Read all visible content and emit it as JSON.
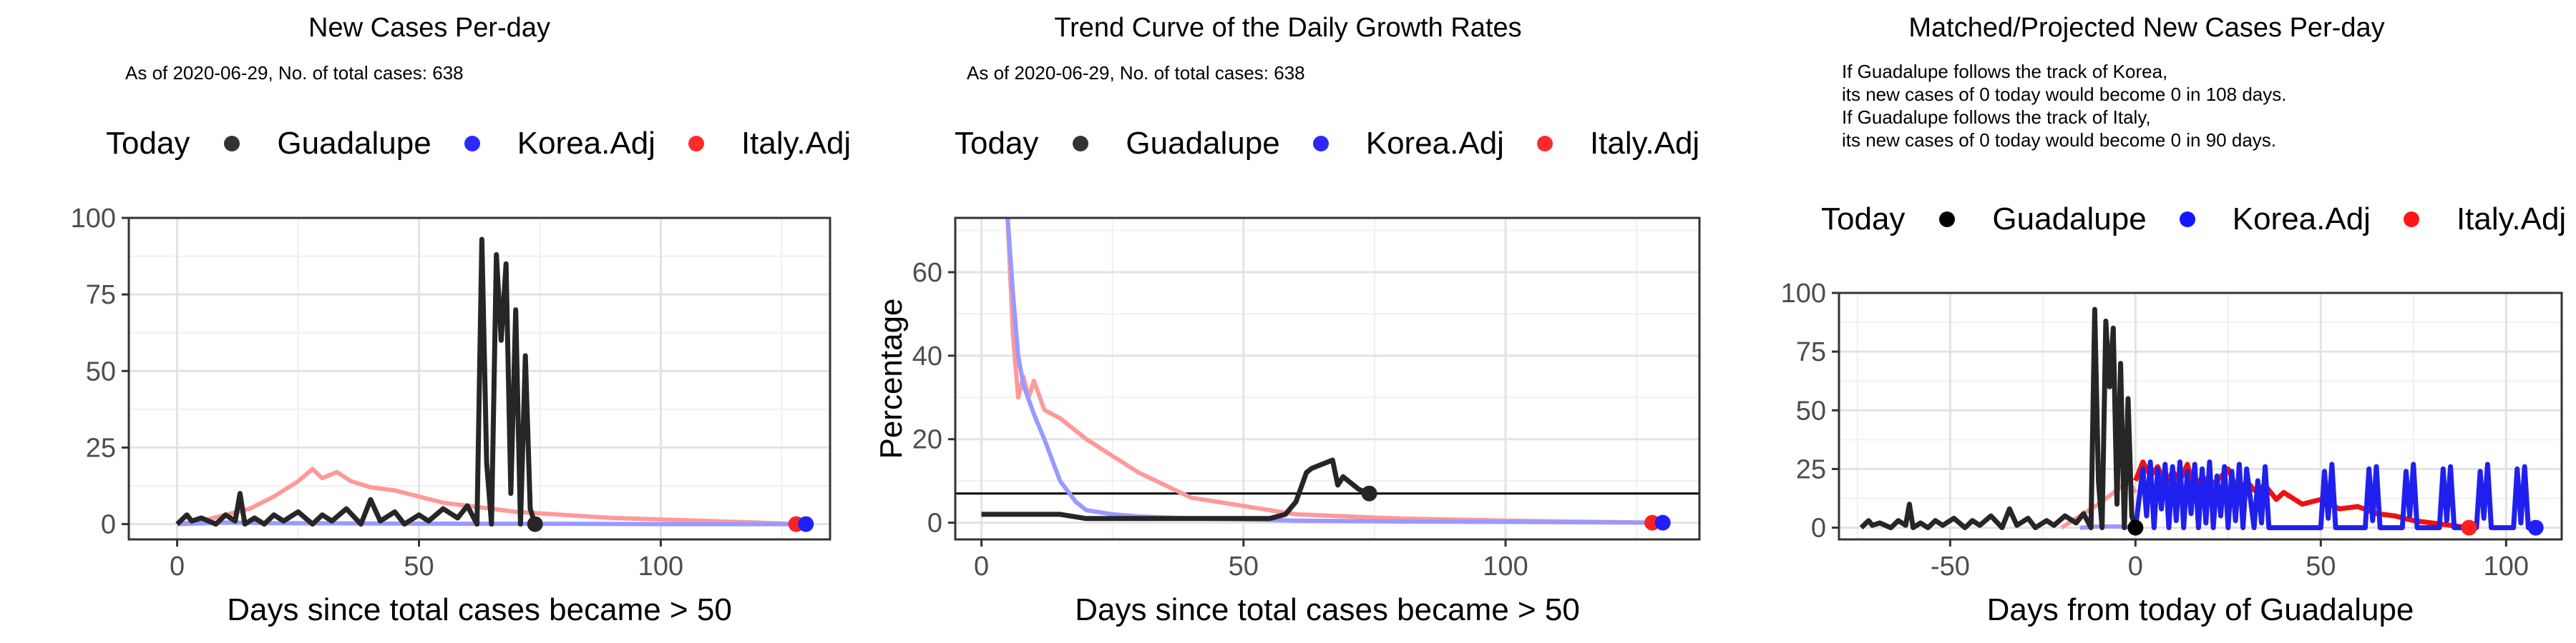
{
  "chart_data": [
    {
      "type": "line",
      "title": "New Cases Per-day",
      "subtitle": "As of 2020-06-29, No. of total cases: 638",
      "xlabel": "Days since total cases became > 50",
      "ylabel": "",
      "xlim": [
        -10,
        135
      ],
      "ylim": [
        -5,
        100
      ],
      "xticks": [
        0,
        50,
        100
      ],
      "yticks": [
        0,
        25,
        50,
        75,
        100
      ],
      "legend": {
        "title": "Today",
        "position": "top",
        "entries": [
          "Guadalupe",
          "Korea.Adj",
          "Italy.Adj"
        ]
      },
      "series": [
        {
          "name": "Italy.Adj",
          "color": "#ff9999",
          "width": 6,
          "x": [
            0,
            5,
            10,
            15,
            20,
            25,
            28,
            30,
            33,
            36,
            40,
            45,
            50,
            55,
            60,
            65,
            70,
            80,
            90,
            100,
            110,
            120,
            128
          ],
          "y": [
            0,
            1,
            3,
            5,
            9,
            14,
            18,
            15,
            17,
            14,
            12,
            11,
            9,
            7,
            6,
            5,
            4,
            3,
            2,
            1.5,
            1,
            0.5,
            0
          ]
        },
        {
          "name": "Korea.Adj",
          "color": "#9999ff",
          "width": 6,
          "x": [
            0,
            10,
            20,
            40,
            60,
            80,
            100,
            120,
            130
          ],
          "y": [
            0,
            0.5,
            0.3,
            0.2,
            0.1,
            0.1,
            0,
            0,
            0
          ]
        },
        {
          "name": "Guadalupe",
          "color": "#262626",
          "width": 7,
          "x": [
            0,
            2,
            3,
            5,
            8,
            10,
            12,
            13,
            14,
            16,
            18,
            20,
            22,
            25,
            28,
            30,
            32,
            35,
            38,
            40,
            42,
            45,
            47,
            50,
            52,
            55,
            58,
            60,
            62,
            63,
            64,
            65,
            66,
            67,
            68,
            69,
            70,
            71,
            72,
            73,
            74
          ],
          "y": [
            0,
            3,
            1,
            2,
            0,
            3,
            1,
            10,
            0,
            2,
            0,
            3,
            1,
            4,
            0,
            3,
            1,
            5,
            0,
            8,
            1,
            4,
            0,
            3,
            1,
            5,
            2,
            6,
            0,
            93,
            20,
            0,
            88,
            60,
            85,
            10,
            70,
            0,
            55,
            5,
            0
          ]
        }
      ],
      "today_points": [
        {
          "name": "Guadalupe",
          "x": 74,
          "y": 0,
          "color": "#262626"
        },
        {
          "name": "Italy.Adj",
          "x": 128,
          "y": 0,
          "color": "#ff2020"
        },
        {
          "name": "Korea.Adj",
          "x": 130,
          "y": 0,
          "color": "#2020ff"
        }
      ]
    },
    {
      "type": "line",
      "title": "Trend Curve of the Daily Growth Rates",
      "subtitle": "As of 2020-06-29, No. of total cases: 638",
      "xlabel": "Days since total cases became > 50",
      "ylabel": "Percentage",
      "xlim": [
        -5,
        137
      ],
      "ylim": [
        -4,
        73
      ],
      "xticks": [
        0,
        50,
        100
      ],
      "yticks": [
        0,
        20,
        40,
        60
      ],
      "hline": 7,
      "legend": {
        "title": "Today",
        "position": "top",
        "entries": [
          "Guadalupe",
          "Korea.Adj",
          "Italy.Adj"
        ]
      },
      "series": [
        {
          "name": "Italy.Adj",
          "color": "#ff9999",
          "width": 6,
          "x": [
            5,
            6,
            7,
            8,
            9,
            10,
            12,
            15,
            20,
            25,
            30,
            35,
            40,
            45,
            50,
            55,
            60,
            70,
            80,
            100,
            128
          ],
          "y": [
            73,
            45,
            30,
            35,
            30,
            34,
            27,
            25,
            20,
            16,
            12,
            9,
            6,
            5,
            4,
            3,
            2,
            1.5,
            1,
            0.5,
            0
          ]
        },
        {
          "name": "Korea.Adj",
          "color": "#9999ff",
          "width": 6,
          "x": [
            5,
            6,
            7,
            8,
            10,
            12,
            15,
            18,
            20,
            25,
            30,
            40,
            50,
            60,
            80,
            100,
            130
          ],
          "y": [
            73,
            55,
            40,
            33,
            26,
            20,
            10,
            5,
            3,
            2,
            1.5,
            1,
            0.8,
            0.5,
            0.3,
            0.2,
            0
          ]
        },
        {
          "name": "Guadalupe",
          "color": "#262626",
          "width": 7,
          "x": [
            0,
            5,
            10,
            15,
            20,
            25,
            30,
            35,
            40,
            45,
            50,
            55,
            58,
            60,
            62,
            63,
            65,
            67,
            68,
            69,
            70,
            72,
            74
          ],
          "y": [
            2,
            2,
            2,
            2,
            1,
            1,
            1,
            1,
            1,
            1,
            1,
            1,
            2,
            5,
            12,
            13,
            14,
            15,
            9,
            11,
            10,
            8,
            7
          ]
        }
      ],
      "today_points": [
        {
          "name": "Guadalupe",
          "x": 74,
          "y": 7,
          "color": "#262626"
        },
        {
          "name": "Italy.Adj",
          "x": 128,
          "y": 0,
          "color": "#ff2020"
        },
        {
          "name": "Korea.Adj",
          "x": 130,
          "y": 0,
          "color": "#2020ff"
        }
      ]
    },
    {
      "type": "line",
      "title": "Matched/Projected New Cases Per-day",
      "subtitle": "If Guadalupe follows the track of Korea,\nits new cases of 0 today would become 0 in 108 days.\nIf Guadalupe follows the track of Italy,\nits new cases of 0 today would become 0 in 90 days.",
      "xlabel": "Days from today of Guadalupe",
      "ylabel": "",
      "xlim": [
        -80,
        115
      ],
      "ylim": [
        -5,
        100
      ],
      "xticks": [
        -50,
        0,
        50,
        100
      ],
      "yticks": [
        0,
        25,
        50,
        75,
        100
      ],
      "legend": {
        "title": "Today",
        "position": "top",
        "entries": [
          "Guadalupe",
          "Korea.Adj",
          "Italy.Adj"
        ]
      },
      "series": [
        {
          "name": "Italy.Adj (matched)",
          "color": "#ff9999",
          "width": 6,
          "x": [
            -20,
            -15,
            -10,
            -5,
            -2,
            0
          ],
          "y": [
            0,
            5,
            10,
            16,
            20,
            15
          ]
        },
        {
          "name": "Italy.Adj (projected)",
          "color": "#ee1111",
          "width": 7,
          "x": [
            0,
            2,
            4,
            6,
            8,
            10,
            12,
            14,
            16,
            18,
            20,
            22,
            25,
            28,
            30,
            32,
            35,
            38,
            40,
            45,
            50,
            55,
            60,
            65,
            70,
            75,
            80,
            85,
            90
          ],
          "y": [
            20,
            28,
            22,
            26,
            18,
            24,
            20,
            27,
            15,
            22,
            18,
            20,
            25,
            14,
            20,
            16,
            18,
            12,
            15,
            10,
            12,
            8,
            9,
            6,
            5,
            3,
            2,
            1,
            0
          ]
        },
        {
          "name": "Korea.Adj (matched)",
          "color": "#9999ff",
          "width": 6,
          "x": [
            -15,
            -10,
            -5,
            0
          ],
          "y": [
            0,
            0.5,
            0.5,
            0
          ]
        },
        {
          "name": "Korea.Adj (projected)",
          "color": "#2020ee",
          "width": 7,
          "x": [
            0,
            2,
            3,
            4,
            5,
            6,
            7,
            8,
            9,
            10,
            11,
            12,
            13,
            14,
            15,
            16,
            17,
            18,
            19,
            20,
            21,
            22,
            23,
            24,
            25,
            26,
            27,
            28,
            29,
            30,
            32,
            33,
            34,
            35,
            36,
            38,
            40,
            42,
            44,
            46,
            48,
            50,
            51,
            52,
            53,
            54,
            56,
            58,
            60,
            62,
            63,
            64,
            65,
            66,
            68,
            70,
            72,
            73,
            74,
            75,
            76,
            78,
            80,
            82,
            83,
            84,
            85,
            86,
            88,
            90,
            92,
            93,
            94,
            95,
            96,
            98,
            100,
            102,
            103,
            104,
            105,
            106,
            108
          ],
          "y": [
            0,
            25,
            5,
            28,
            0,
            25,
            8,
            27,
            0,
            26,
            3,
            28,
            0,
            24,
            6,
            27,
            0,
            25,
            2,
            28,
            0,
            22,
            5,
            26,
            0,
            24,
            3,
            27,
            0,
            25,
            0,
            20,
            2,
            26,
            0,
            0,
            0,
            0,
            0,
            0,
            0,
            0,
            24,
            4,
            27,
            0,
            0,
            0,
            0,
            0,
            25,
            3,
            26,
            0,
            0,
            0,
            0,
            24,
            5,
            27,
            0,
            0,
            0,
            0,
            25,
            3,
            26,
            0,
            0,
            0,
            0,
            24,
            4,
            27,
            0,
            0,
            0,
            0,
            25,
            2,
            26,
            0,
            0
          ]
        },
        {
          "name": "Guadalupe",
          "color": "#262626",
          "width": 7,
          "x": [
            -74,
            -72,
            -71,
            -69,
            -66,
            -64,
            -62,
            -61,
            -60,
            -58,
            -56,
            -54,
            -52,
            -49,
            -46,
            -44,
            -42,
            -39,
            -36,
            -34,
            -32,
            -29,
            -27,
            -24,
            -22,
            -19,
            -16,
            -14,
            -12,
            -11,
            -10,
            -9,
            -8,
            -7,
            -6,
            -5,
            -4,
            -3,
            -2,
            -1,
            0
          ],
          "y": [
            0,
            3,
            1,
            2,
            0,
            3,
            1,
            10,
            0,
            2,
            0,
            3,
            1,
            4,
            0,
            3,
            1,
            5,
            0,
            8,
            1,
            4,
            0,
            3,
            1,
            5,
            2,
            6,
            0,
            93,
            20,
            0,
            88,
            60,
            85,
            10,
            70,
            0,
            55,
            5,
            0
          ]
        }
      ],
      "today_points": [
        {
          "name": "Guadalupe",
          "x": 0,
          "y": 0,
          "color": "#000000"
        },
        {
          "name": "Italy.Adj",
          "x": 90,
          "y": 0,
          "color": "#ff2020"
        },
        {
          "name": "Korea.Adj",
          "x": 108,
          "y": 0,
          "color": "#2020ff"
        }
      ]
    }
  ],
  "legend_colors": {
    "Guadalupe": "#262626",
    "Korea.Adj": "#2a2aff",
    "Italy.Adj": "#ff2a2a"
  }
}
